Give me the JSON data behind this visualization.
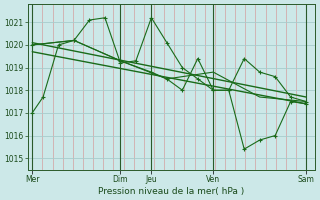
{
  "background_color": "#cce8e8",
  "grid_color_v": "#d4a0a0",
  "grid_color_h": "#a8cccc",
  "line_color": "#1a6b1a",
  "xlabel": "Pression niveau de la mer( hPa )",
  "ylim": [
    1014.5,
    1021.8
  ],
  "yticks": [
    1015,
    1016,
    1017,
    1018,
    1019,
    1020,
    1021
  ],
  "xlim": [
    0,
    9.3
  ],
  "xtick_labels": [
    "Mer",
    "Dim",
    "Jeu",
    "Ven",
    "Sam"
  ],
  "xtick_positions": [
    0.15,
    3.0,
    4.0,
    6.0,
    9.0
  ],
  "vline_positions": [
    0.15,
    3.0,
    4.0,
    6.0,
    9.0
  ],
  "series_main": {
    "x": [
      0.15,
      0.5,
      1.0,
      1.5,
      2.0,
      2.5,
      3.0,
      3.5,
      4.0,
      4.5,
      5.0,
      5.5,
      6.0,
      6.5,
      7.0,
      7.5,
      8.0,
      8.5,
      9.0
    ],
    "y": [
      1017.0,
      1017.7,
      1020.0,
      1020.2,
      1021.1,
      1021.2,
      1019.2,
      1019.3,
      1021.2,
      1020.1,
      1019.0,
      1018.5,
      1018.0,
      1018.0,
      1019.4,
      1018.8,
      1018.6,
      1017.7,
      1017.5
    ]
  },
  "series_dip": {
    "x": [
      0.15,
      1.5,
      3.0,
      4.0,
      4.5,
      5.0,
      5.5,
      6.0,
      6.5,
      7.0,
      7.5,
      8.0,
      8.5,
      9.0
    ],
    "y": [
      1020.0,
      1020.2,
      1019.3,
      1018.8,
      1018.5,
      1018.0,
      1019.4,
      1018.0,
      1018.0,
      1015.4,
      1015.8,
      1016.0,
      1017.5,
      1017.4
    ]
  },
  "trend1": {
    "x": [
      0.15,
      9.0
    ],
    "y": [
      1020.1,
      1017.7
    ]
  },
  "trend2": {
    "x": [
      0.15,
      9.0
    ],
    "y": [
      1019.7,
      1017.4
    ]
  },
  "series_connect": {
    "x": [
      0.15,
      1.5,
      3.0,
      4.5,
      6.0,
      7.5,
      9.0
    ],
    "y": [
      1020.0,
      1020.2,
      1019.3,
      1018.5,
      1018.8,
      1017.7,
      1017.5
    ]
  }
}
